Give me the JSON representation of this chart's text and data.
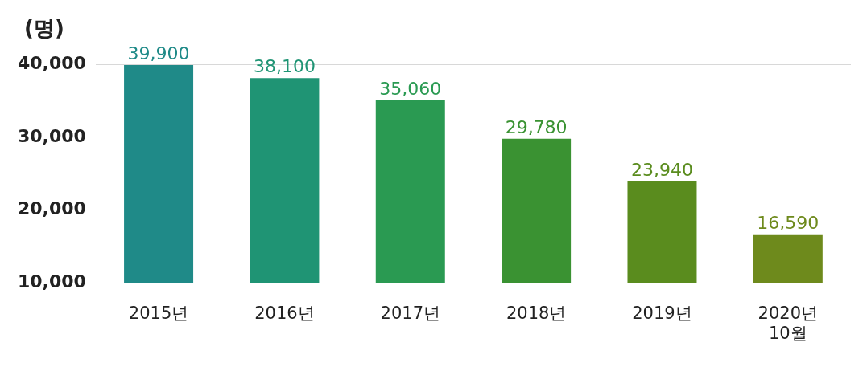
{
  "chart_data": {
    "type": "bar",
    "ylabel": "(명)",
    "categories": [
      "2015년",
      "2016년",
      "2017년",
      "2018년",
      "2019년",
      "2020년 10월"
    ],
    "values": [
      39900,
      38100,
      35060,
      29780,
      23940,
      16590
    ],
    "value_labels": [
      "39,900",
      "38,100",
      "35,060",
      "29,780",
      "23,940",
      "16,590"
    ],
    "colors": [
      "#1f8a88",
      "#1f9474",
      "#2a9a52",
      "#3a9232",
      "#5a8c1e",
      "#6e8a1c"
    ],
    "ylim": [
      10000,
      40000
    ],
    "yticks": [
      {
        "value": 10000,
        "label": "10,000"
      },
      {
        "value": 20000,
        "label": "20,000"
      },
      {
        "value": 30000,
        "label": "30,000"
      },
      {
        "value": 40000,
        "label": "40,000"
      }
    ],
    "grid": "y",
    "legend": false
  }
}
